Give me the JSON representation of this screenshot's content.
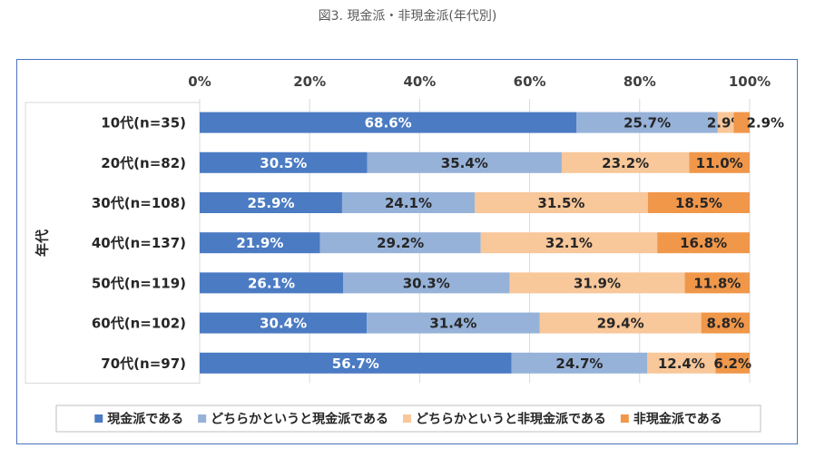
{
  "title": "図3. 現金派・非現金派(年代別)",
  "chart_data": {
    "type": "bar",
    "orientation": "horizontal",
    "stacked": true,
    "categories": [
      "10代(n=35)",
      "20代(n=82)",
      "30代(n=108)",
      "40代(n=137)",
      "50代(n=119)",
      "60代(n=102)",
      "70代(n=97)"
    ],
    "ylabel": "年代",
    "xlim": [
      0,
      100
    ],
    "x_ticks": [
      "0%",
      "20%",
      "40%",
      "60%",
      "80%",
      "100%"
    ],
    "grid": true,
    "legend_position": "bottom",
    "series": [
      {
        "name": "現金派である",
        "color": "#4b7bc3",
        "label_color": "#ffffff",
        "values": [
          68.6,
          30.5,
          25.9,
          21.9,
          26.1,
          30.4,
          56.7
        ]
      },
      {
        "name": "どちらかというと現金派である",
        "color": "#96b2d9",
        "label_color": "#262626",
        "values": [
          25.7,
          35.4,
          24.1,
          29.2,
          30.3,
          31.4,
          24.7
        ]
      },
      {
        "name": "どちらかというと非現金派である",
        "color": "#f8c79a",
        "label_color": "#262626",
        "values": [
          2.9,
          23.2,
          31.5,
          32.1,
          31.9,
          29.4,
          12.4
        ]
      },
      {
        "name": "非現金派である",
        "color": "#f0974a",
        "label_color": "#262626",
        "values": [
          2.9,
          11.0,
          18.5,
          16.8,
          11.8,
          8.8,
          6.2
        ]
      }
    ]
  }
}
